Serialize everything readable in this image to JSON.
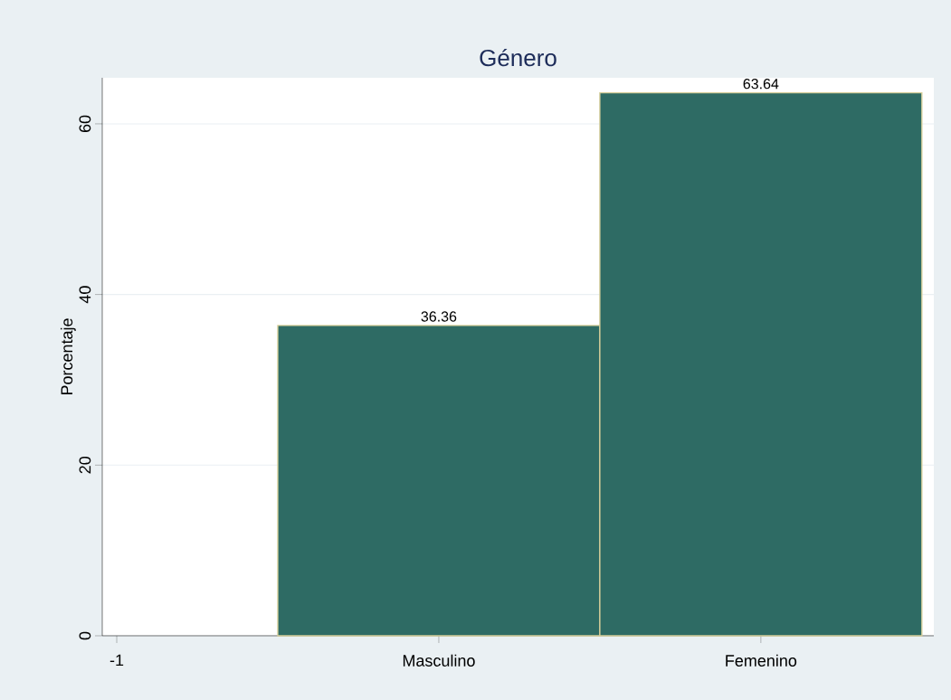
{
  "chart_data": {
    "type": "bar",
    "title": "Género",
    "ylabel": "Porcentaje",
    "categories": [
      "-1",
      "Masculino",
      "Femenino"
    ],
    "values": [
      null,
      36.36,
      63.64
    ],
    "color": "#2e6b64",
    "ylim": [
      0,
      65.4
    ],
    "yticks": [
      0,
      20,
      40,
      60
    ],
    "grid": "y",
    "data_labels": true
  }
}
